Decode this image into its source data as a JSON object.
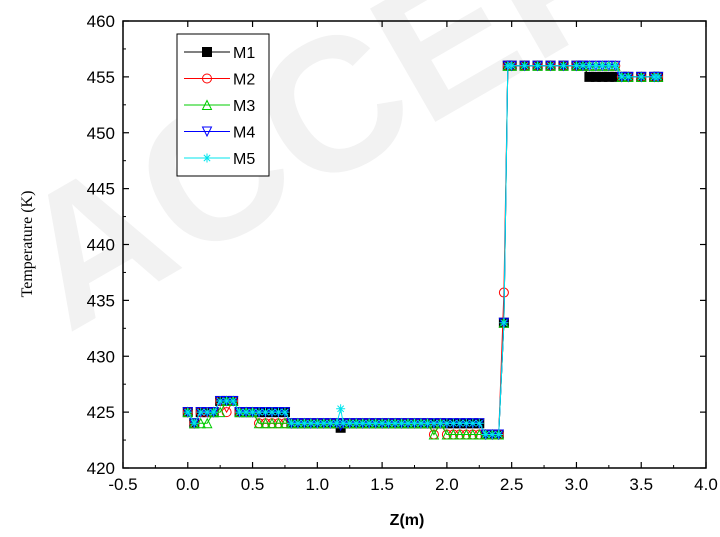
{
  "watermark": "ACCEPTED",
  "chart_data": {
    "type": "line",
    "title": "",
    "xlabel": "Z(m)",
    "ylabel": "Temperature (K)",
    "xlim": [
      -0.5,
      4.0
    ],
    "ylim": [
      420,
      460
    ],
    "xticks": [
      -0.5,
      0.0,
      0.5,
      1.0,
      1.5,
      2.0,
      2.5,
      3.0,
      3.5,
      4.0
    ],
    "xtick_labels": [
      "-0.5",
      "0.0",
      "0.5",
      "1.0",
      "1.5",
      "2.0",
      "2.5",
      "3.0",
      "3.5",
      "4.0"
    ],
    "yticks": [
      420,
      425,
      430,
      435,
      440,
      445,
      450,
      455,
      460
    ],
    "ytick_labels": [
      "420",
      "425",
      "430",
      "435",
      "440",
      "445",
      "450",
      "455",
      "460"
    ],
    "grid": false,
    "legend_position": "top-left",
    "series": [
      {
        "name": "M1",
        "color": "#000000",
        "marker": "square-filled",
        "x": [
          0.0,
          0.05,
          0.1,
          0.15,
          0.2,
          0.25,
          0.3,
          0.35,
          0.4,
          0.45,
          0.5,
          0.55,
          0.6,
          0.65,
          0.7,
          0.75,
          0.8,
          0.85,
          0.9,
          0.95,
          1.0,
          1.05,
          1.1,
          1.15,
          1.18,
          1.2,
          1.25,
          1.3,
          1.35,
          1.4,
          1.45,
          1.5,
          1.55,
          1.6,
          1.65,
          1.7,
          1.75,
          1.8,
          1.85,
          1.9,
          1.95,
          2.0,
          2.05,
          2.1,
          2.15,
          2.2,
          2.25,
          2.3,
          2.35,
          2.4,
          2.44,
          2.47,
          2.5,
          2.6,
          2.7,
          2.8,
          2.9,
          3.0,
          3.05,
          3.1,
          3.15,
          3.2,
          3.25,
          3.3,
          3.35,
          3.4,
          3.5,
          3.6,
          3.63
        ],
        "y": [
          425,
          424,
          425,
          425,
          425,
          426,
          426,
          426,
          425,
          425,
          425,
          425,
          425,
          425,
          425,
          425,
          424,
          424,
          424,
          424,
          424,
          424,
          424,
          424,
          423.6,
          424,
          424,
          424,
          424,
          424,
          424,
          424,
          424,
          424,
          424,
          424,
          424,
          424,
          424,
          424,
          424,
          424,
          424,
          424,
          424,
          424,
          424,
          423,
          423,
          423,
          433,
          456,
          456,
          456,
          456,
          456,
          456,
          456,
          456,
          455,
          455,
          455,
          455,
          455,
          455,
          455,
          455,
          455,
          455
        ]
      },
      {
        "name": "M2",
        "color": "#ff0000",
        "marker": "circle-open",
        "x": [
          0.0,
          0.05,
          0.1,
          0.15,
          0.2,
          0.25,
          0.3,
          0.35,
          0.4,
          0.45,
          0.5,
          0.55,
          0.6,
          0.65,
          0.7,
          0.75,
          0.8,
          0.85,
          0.9,
          0.95,
          1.0,
          1.05,
          1.1,
          1.15,
          1.2,
          1.25,
          1.3,
          1.35,
          1.4,
          1.45,
          1.5,
          1.55,
          1.6,
          1.65,
          1.7,
          1.75,
          1.8,
          1.85,
          1.9,
          1.95,
          2.0,
          2.05,
          2.1,
          2.15,
          2.2,
          2.25,
          2.3,
          2.35,
          2.4,
          2.44,
          2.47,
          2.5,
          2.6,
          2.7,
          2.8,
          2.9,
          3.0,
          3.05,
          3.1,
          3.15,
          3.2,
          3.25,
          3.3,
          3.35,
          3.4,
          3.5,
          3.6,
          3.63
        ],
        "y": [
          425,
          424,
          425,
          425,
          425,
          426,
          425,
          426,
          425,
          425,
          425,
          424,
          424,
          424,
          424,
          424,
          424,
          424,
          424,
          424,
          424,
          424,
          424,
          424,
          424,
          424,
          424,
          424,
          424,
          424,
          424,
          424,
          424,
          424,
          424,
          424,
          424,
          424,
          423,
          424,
          423,
          423,
          423,
          423,
          423,
          423,
          423,
          423,
          423,
          435.7,
          456,
          456,
          456,
          456,
          456,
          456,
          456,
          456,
          456,
          456,
          456,
          456,
          456,
          455,
          455,
          455,
          455,
          455
        ]
      },
      {
        "name": "M3",
        "color": "#00cc00",
        "marker": "triangle-up-open",
        "x": [
          0.0,
          0.05,
          0.1,
          0.15,
          0.2,
          0.25,
          0.3,
          0.35,
          0.4,
          0.45,
          0.5,
          0.55,
          0.6,
          0.65,
          0.7,
          0.75,
          0.8,
          0.85,
          0.9,
          0.95,
          1.0,
          1.05,
          1.1,
          1.15,
          1.2,
          1.25,
          1.3,
          1.35,
          1.4,
          1.45,
          1.5,
          1.55,
          1.6,
          1.65,
          1.7,
          1.75,
          1.8,
          1.85,
          1.9,
          1.95,
          2.0,
          2.05,
          2.1,
          2.15,
          2.2,
          2.25,
          2.3,
          2.35,
          2.4,
          2.44,
          2.47,
          2.5,
          2.6,
          2.7,
          2.8,
          2.9,
          3.0,
          3.05,
          3.1,
          3.15,
          3.2,
          3.25,
          3.3,
          3.35,
          3.4,
          3.5,
          3.6,
          3.63
        ],
        "y": [
          425,
          424,
          424,
          424,
          425,
          425,
          426,
          426,
          425,
          425,
          425,
          424,
          424,
          424,
          424,
          424,
          424,
          424,
          424,
          424,
          424,
          424,
          424,
          424,
          424,
          424,
          424,
          424,
          424,
          424,
          424,
          424,
          424,
          424,
          424,
          424,
          424,
          424,
          423,
          424,
          423,
          423,
          423,
          423,
          423,
          423,
          423,
          423,
          423,
          433,
          456,
          456,
          456,
          456,
          456,
          456,
          456,
          456,
          456,
          456,
          456,
          456,
          456,
          455,
          455,
          455,
          455,
          455
        ]
      },
      {
        "name": "M4",
        "color": "#0000ff",
        "marker": "triangle-down-open",
        "x": [
          0.0,
          0.05,
          0.1,
          0.15,
          0.2,
          0.25,
          0.3,
          0.35,
          0.4,
          0.45,
          0.5,
          0.55,
          0.6,
          0.65,
          0.7,
          0.75,
          0.8,
          0.85,
          0.9,
          0.95,
          1.0,
          1.05,
          1.1,
          1.15,
          1.18,
          1.2,
          1.25,
          1.3,
          1.35,
          1.4,
          1.45,
          1.5,
          1.55,
          1.6,
          1.65,
          1.7,
          1.75,
          1.8,
          1.85,
          1.9,
          1.95,
          2.0,
          2.05,
          2.1,
          2.15,
          2.2,
          2.25,
          2.3,
          2.35,
          2.4,
          2.44,
          2.47,
          2.5,
          2.6,
          2.7,
          2.8,
          2.9,
          3.0,
          3.05,
          3.1,
          3.15,
          3.2,
          3.25,
          3.3,
          3.35,
          3.4,
          3.5,
          3.6,
          3.63
        ],
        "y": [
          425,
          424,
          425,
          425,
          425,
          426,
          426,
          426,
          425,
          425,
          425,
          425,
          425,
          425,
          425,
          425,
          424,
          424,
          424,
          424,
          424,
          424,
          424,
          424,
          423.8,
          424,
          424,
          424,
          424,
          424,
          424,
          424,
          424,
          424,
          424,
          424,
          424,
          424,
          424,
          424,
          424,
          424,
          424,
          424,
          424,
          424,
          424,
          423,
          423,
          423,
          433,
          456,
          456,
          456,
          456,
          456,
          456,
          456,
          456,
          456,
          456,
          456,
          456,
          456,
          455,
          455,
          455,
          455,
          455
        ]
      },
      {
        "name": "M5",
        "color": "#00e5ee",
        "marker": "asterisk",
        "x": [
          0.0,
          0.05,
          0.1,
          0.15,
          0.2,
          0.25,
          0.3,
          0.35,
          0.4,
          0.45,
          0.5,
          0.55,
          0.6,
          0.65,
          0.7,
          0.75,
          0.8,
          0.85,
          0.9,
          0.95,
          1.0,
          1.05,
          1.1,
          1.15,
          1.18,
          1.2,
          1.25,
          1.3,
          1.35,
          1.4,
          1.45,
          1.5,
          1.55,
          1.6,
          1.65,
          1.7,
          1.75,
          1.8,
          1.85,
          1.9,
          1.95,
          2.0,
          2.05,
          2.1,
          2.15,
          2.2,
          2.25,
          2.3,
          2.35,
          2.4,
          2.44,
          2.47,
          2.5,
          2.6,
          2.7,
          2.8,
          2.9,
          3.0,
          3.05,
          3.1,
          3.15,
          3.2,
          3.25,
          3.3,
          3.35,
          3.4,
          3.5,
          3.6,
          3.63
        ],
        "y": [
          425,
          424,
          425,
          425,
          425,
          426,
          426,
          426,
          425,
          425,
          425,
          425,
          425,
          425,
          425,
          425,
          424,
          424,
          424,
          424,
          424,
          424,
          424,
          424,
          425.3,
          424,
          424,
          424,
          424,
          424,
          424,
          424,
          424,
          424,
          424,
          424,
          424,
          424,
          424,
          424,
          424,
          424,
          424,
          424,
          424,
          424,
          424,
          423,
          423,
          423,
          433,
          456,
          456,
          456,
          456,
          456,
          456,
          456,
          456,
          456,
          456,
          456,
          456,
          456,
          455,
          455,
          455,
          455,
          455
        ]
      }
    ]
  }
}
